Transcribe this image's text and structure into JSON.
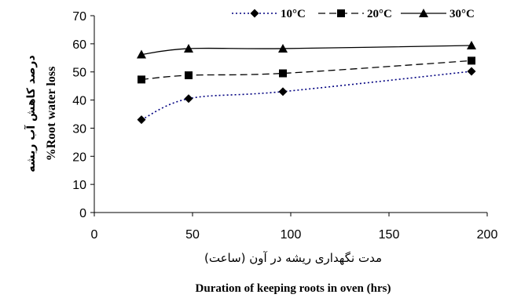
{
  "chart_data": {
    "type": "line",
    "xlabel_fa": "مدت نگهداری ریشه در آون (ساعت)",
    "xlabel": "Duration of keeping roots in oven (hrs)",
    "ylabel_fa": "درصد کاهش آب ریشه",
    "ylabel": "%Root water loss",
    "xlim": [
      0,
      200
    ],
    "ylim": [
      0,
      70
    ],
    "xticks": [
      "0",
      "50",
      "100",
      "150",
      "200"
    ],
    "yticks": [
      "0",
      "10",
      "20",
      "30",
      "40",
      "50",
      "60",
      "70"
    ],
    "grid": false,
    "legend_position": "top",
    "series": [
      {
        "name": "10°C",
        "marker": "diamond",
        "line": "dotted",
        "color": "#000080",
        "x": [
          24,
          48,
          96,
          192
        ],
        "y": [
          33,
          40.5,
          43,
          50.2
        ]
      },
      {
        "name": "20°C",
        "marker": "square",
        "line": "dashed",
        "color": "#000000",
        "x": [
          24,
          48,
          96,
          192
        ],
        "y": [
          47.3,
          48.8,
          49.5,
          54
        ]
      },
      {
        "name": "30°C",
        "marker": "triangle",
        "line": "solid",
        "color": "#000000",
        "x": [
          24,
          48,
          96,
          192
        ],
        "y": [
          56.2,
          58.3,
          58.3,
          59.4
        ]
      }
    ]
  }
}
